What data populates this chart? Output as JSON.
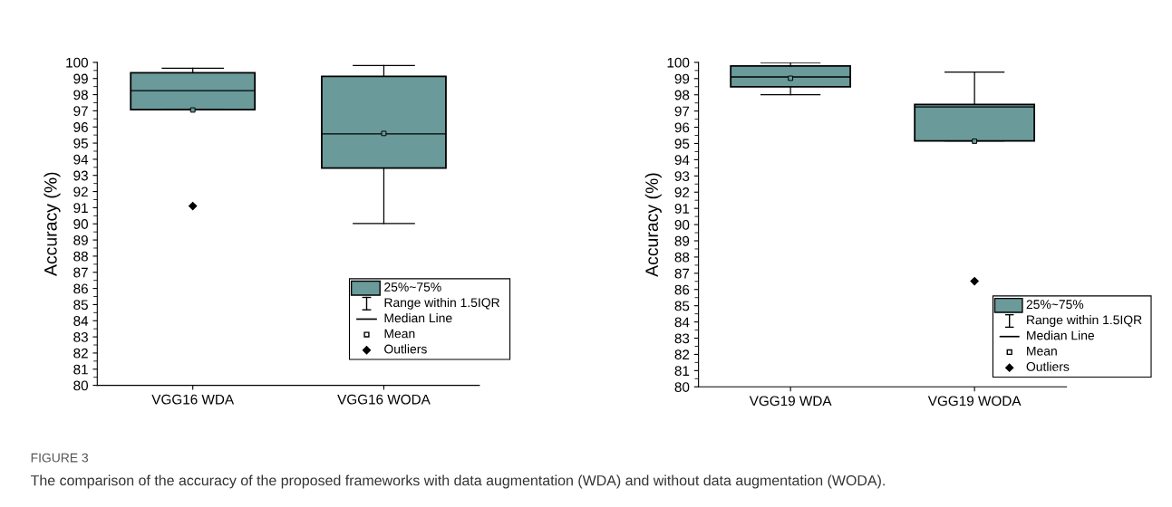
{
  "chart_data": [
    {
      "type": "box",
      "ylabel": "Accuracy (%)",
      "categories": [
        "VGG16 WDA",
        "VGG16 WODA"
      ],
      "series": [
        {
          "color": "#6a9a9a",
          "boxes": [
            {
              "low": 97.07,
              "q1": 97.07,
              "median": 98.25,
              "q3": 99.36,
              "high": 99.63,
              "mean": 97.05,
              "outliers": [
                91.1
              ]
            },
            {
              "low": 90.02,
              "q1": 93.45,
              "median": 95.57,
              "q3": 99.13,
              "high": 99.8,
              "mean": 95.6
            }
          ]
        }
      ],
      "ylim": [
        80,
        100
      ],
      "yticks": [
        80,
        81,
        82,
        83,
        84,
        85,
        86,
        87,
        88,
        89,
        90,
        91,
        92,
        93,
        94,
        95,
        96,
        97,
        98,
        99,
        100
      ],
      "grid": false,
      "annotations": [
        "25%~75%",
        "Range within 1.5IQR",
        "Median Line",
        "Mean",
        "Outliers",
        "FIGURE 3",
        "The comparison of the accuracy of the proposed frameworks with data augmentation (WDA) and without data augmentation (WODA)."
      ]
    },
    {
      "type": "box",
      "ylabel": "Accuracy (%)",
      "categories": [
        "VGG19 WDA",
        "VGG19 WODA"
      ],
      "series": [
        {
          "color": "#6a9a9a",
          "boxes": [
            {
              "low": 98.0,
              "q1": 98.49,
              "median": 99.1,
              "q3": 99.78,
              "high": 99.98,
              "mean": 99.02
            },
            {
              "low": 95.16,
              "q1": 95.16,
              "median": 97.25,
              "q3": 97.41,
              "high": 99.4,
              "mean": 95.14,
              "outliers": [
                86.51
              ]
            }
          ]
        }
      ],
      "ylim": [
        80,
        100
      ],
      "yticks": [
        80,
        81,
        82,
        83,
        84,
        85,
        86,
        87,
        88,
        89,
        90,
        91,
        92,
        93,
        94,
        95,
        96,
        97,
        98,
        99,
        100
      ],
      "grid": false,
      "annotations": [
        "25%~75%",
        "Range within 1.5IQR",
        "Median Line",
        "Mean",
        "Outliers"
      ]
    }
  ]
}
